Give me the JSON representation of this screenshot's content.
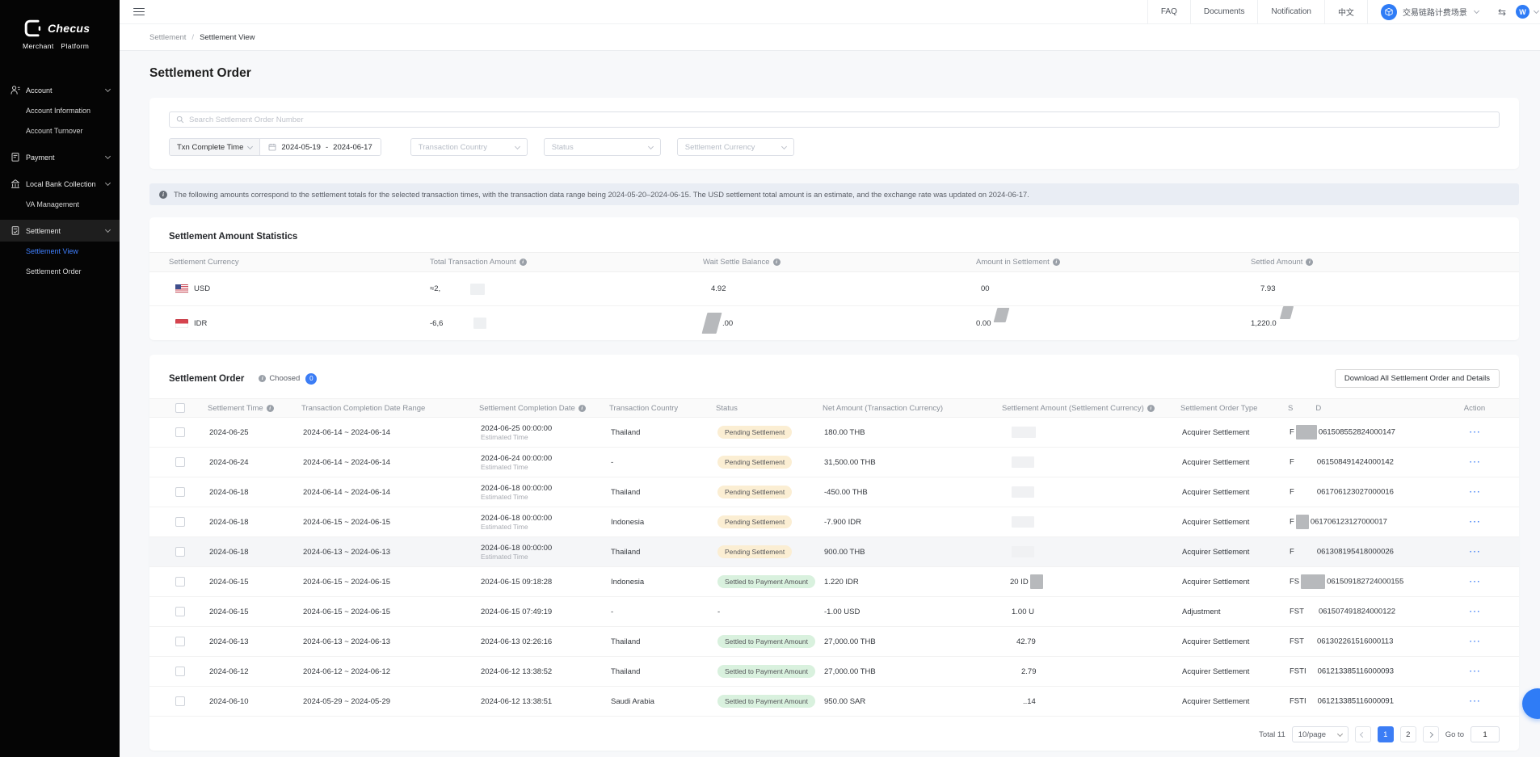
{
  "header": {
    "menu": [
      "FAQ",
      "Documents",
      "Notification",
      "中文"
    ],
    "workspace": "交易链路计费场景",
    "transfer_icon": "⇆",
    "avatar_initial": "W"
  },
  "sidebar": {
    "logo_title": "Checus",
    "logo_subtitle": "Merchant Platform",
    "groups": [
      {
        "label": "Account",
        "children": [
          "Account Information",
          "Account Turnover"
        ]
      },
      {
        "label": "Payment",
        "children": []
      },
      {
        "label": "Local Bank Collection",
        "children": [
          "VA Management"
        ]
      },
      {
        "label": "Settlement",
        "children": [
          "Settlement View",
          "Settlement Order"
        ]
      }
    ],
    "active_item": "Settlement View"
  },
  "breadcrumb": {
    "parent": "Settlement",
    "separator": "/",
    "current": "Settlement View"
  },
  "page_title": "Settlement Order",
  "filters": {
    "search_placeholder": "Search Settlement Order Number",
    "time_type": "Txn Complete Time",
    "date_start": "2024-05-19",
    "date_separator": "-",
    "date_end": "2024-06-17",
    "selects": [
      "Transaction Country",
      "Status",
      "Settlement Currency"
    ]
  },
  "banner": {
    "text": "The following amounts correspond to the settlement totals for the selected transaction times, with the transaction data range being 2024-05-20–2024-06-15. The USD settlement total amount is an estimate, and the exchange rate was updated on 2024-06-17."
  },
  "stats": {
    "title": "Settlement Amount Statistics",
    "columns": [
      {
        "label": "Settlement Currency",
        "info": false
      },
      {
        "label": "Total Transaction Amount",
        "info": true
      },
      {
        "label": "Wait Settle Balance",
        "info": true
      },
      {
        "label": "Amount in Settlement",
        "info": true
      },
      {
        "label": "Settled Amount",
        "info": true
      }
    ],
    "rows": [
      {
        "currency": "USD",
        "flag": "us",
        "cells": [
          {
            "text": "≈2,",
            "indent": 0,
            "blob": {
              "kind": "light",
              "x": 50,
              "y": 14,
              "w": 18,
              "h": 14
            }
          },
          {
            "text": "4.92",
            "indent": 10
          },
          {
            "text": "00",
            "indent": 6
          },
          {
            "text": "7.93",
            "indent": 12
          }
        ]
      },
      {
        "currency": "IDR",
        "flag": "id",
        "cells": [
          {
            "text": "-6,6",
            "indent": 0,
            "blob": {
              "kind": "light",
              "x": 54,
              "y": 14,
              "w": 16,
              "h": 14
            }
          },
          {
            "text": ".00",
            "indent": 24,
            "blob": {
              "kind": "grayskew",
              "x": 2,
              "y": 8,
              "w": 18,
              "h": 26
            }
          },
          {
            "text": "0.00",
            "indent": 0,
            "blob": {
              "kind": "grayskew",
              "x": 24,
              "y": 2,
              "w": 15,
              "h": 18
            }
          },
          {
            "text": "1,220.0",
            "indent": 0,
            "blob": {
              "kind": "grayskew",
              "x": 38,
              "y": 0,
              "w": 13,
              "h": 16
            }
          }
        ]
      }
    ]
  },
  "orders": {
    "title": "Settlement Order",
    "choosed_label": "Choosed",
    "choosed_count": "0",
    "download_label": "Download All Settlement Order and Details",
    "action_label": "···",
    "columns": [
      "Settlement Time",
      "Transaction Completion Date Range",
      "Settlement Completion Date",
      "Transaction Country",
      "Status",
      "Net Amount (Transaction Currency)",
      "Settlement Amount (Settlement Currency)",
      "Settlement Order Type",
      "Action"
    ],
    "id_col": {
      "pre": "S",
      "post": "D"
    },
    "rows": [
      {
        "settlement_time": "2024-06-25",
        "txn_range": "2024-06-14 ~ 2024-06-14",
        "completion": "2024-06-25 00:00:00",
        "completion_note": "Estimated Time",
        "country": "Thailand",
        "status": "Pending Settlement",
        "status_kind": "pending",
        "net_amount": "180.00 THB",
        "amount_fragment": "",
        "amount_indent": 8,
        "amount_blob": "light",
        "amount_blob_w": 30,
        "order_type": "Acquirer Settlement",
        "id_prefix": "F",
        "id_blob": "gray",
        "id_blob_w": 26,
        "id_suffix": "061508552824000147",
        "highlighted": false
      },
      {
        "settlement_time": "2024-06-24",
        "txn_range": "2024-06-14 ~ 2024-06-14",
        "completion": "2024-06-24 00:00:00",
        "completion_note": "Estimated Time",
        "country": "-",
        "status": "Pending Settlement",
        "status_kind": "pending",
        "net_amount": "31,500.00 THB",
        "amount_fragment": "",
        "amount_indent": 8,
        "amount_blob": "light",
        "amount_blob_w": 28,
        "order_type": "Acquirer Settlement",
        "id_prefix": "F",
        "id_blob": "gap",
        "id_blob_w": 24,
        "id_suffix": "061508491424000142",
        "highlighted": false
      },
      {
        "settlement_time": "2024-06-18",
        "txn_range": "2024-06-14 ~ 2024-06-14",
        "completion": "2024-06-18 00:00:00",
        "completion_note": "Estimated Time",
        "country": "Thailand",
        "status": "Pending Settlement",
        "status_kind": "pending",
        "net_amount": "-450.00 THB",
        "amount_fragment": "",
        "amount_indent": 8,
        "amount_blob": "light",
        "amount_blob_w": 28,
        "order_type": "Acquirer Settlement",
        "id_prefix": "F",
        "id_blob": "gap",
        "id_blob_w": 24,
        "id_suffix": "061706123027000016",
        "highlighted": false
      },
      {
        "settlement_time": "2024-06-18",
        "txn_range": "2024-06-15 ~ 2024-06-15",
        "completion": "2024-06-18 00:00:00",
        "completion_note": "Estimated Time",
        "country": "Indonesia",
        "status": "Pending Settlement",
        "status_kind": "pending",
        "net_amount": "-7.900 IDR",
        "amount_fragment": "",
        "amount_indent": 8,
        "amount_blob": "light",
        "amount_blob_w": 28,
        "order_type": "Acquirer Settlement",
        "id_prefix": "F",
        "id_blob": "gray",
        "id_blob_w": 16,
        "id_suffix": "061706123127000017",
        "highlighted": false
      },
      {
        "settlement_time": "2024-06-18",
        "txn_range": "2024-06-13 ~ 2024-06-13",
        "completion": "2024-06-18 00:00:00",
        "completion_note": "Estimated Time",
        "country": "Thailand",
        "status": "Pending Settlement",
        "status_kind": "pending",
        "net_amount": "900.00 THB",
        "amount_fragment": "",
        "amount_indent": 8,
        "amount_blob": "light",
        "amount_blob_w": 28,
        "order_type": "Acquirer Settlement",
        "id_prefix": "F",
        "id_blob": "gap",
        "id_blob_w": 24,
        "id_suffix": "061308195418000026",
        "highlighted": true
      },
      {
        "settlement_time": "2024-06-15",
        "txn_range": "2024-06-15 ~ 2024-06-15",
        "completion": "2024-06-15 09:18:28",
        "completion_note": "",
        "country": "Indonesia",
        "status": "Settled to Payment Amount",
        "status_kind": "settled",
        "net_amount": "1.220 IDR",
        "amount_fragment": "20 ID",
        "amount_indent": 8,
        "amount_blob": "gray",
        "amount_blob_w": 16,
        "order_type": "Acquirer Settlement",
        "id_prefix": "FS",
        "id_blob": "gray",
        "id_blob_w": 30,
        "id_suffix": "061509182724000155",
        "highlighted": false
      },
      {
        "settlement_time": "2024-06-15",
        "txn_range": "2024-06-15 ~ 2024-06-15",
        "completion": "2024-06-15 07:49:19",
        "completion_note": "",
        "country": "-",
        "status": "-",
        "status_kind": "none",
        "net_amount": "-1.00 USD",
        "amount_fragment": "1.00 U",
        "amount_indent": 10,
        "amount_blob": "none",
        "amount_blob_w": 0,
        "order_type": "Adjustment",
        "id_prefix": "FST",
        "id_blob": "gap",
        "id_blob_w": 14,
        "id_suffix": "061507491824000122",
        "highlighted": false
      },
      {
        "settlement_time": "2024-06-13",
        "txn_range": "2024-06-13 ~ 2024-06-13",
        "completion": "2024-06-13 02:26:16",
        "completion_note": "",
        "country": "Thailand",
        "status": "Settled to Payment Amount",
        "status_kind": "settled",
        "net_amount": "27,000.00 THB",
        "amount_fragment": "42.79",
        "amount_indent": 16,
        "amount_blob": "none",
        "amount_blob_w": 0,
        "order_type": "Acquirer Settlement",
        "id_prefix": "FST",
        "id_blob": "gap",
        "id_blob_w": 12,
        "id_suffix": "061302261516000113",
        "highlighted": false
      },
      {
        "settlement_time": "2024-06-12",
        "txn_range": "2024-06-12 ~ 2024-06-12",
        "completion": "2024-06-12 13:38:52",
        "completion_note": "",
        "country": "Thailand",
        "status": "Settled to Payment Amount",
        "status_kind": "settled",
        "net_amount": "27,000.00 THB",
        "amount_fragment": "2.79",
        "amount_indent": 22,
        "amount_blob": "none",
        "amount_blob_w": 0,
        "order_type": "Acquirer Settlement",
        "id_prefix": "FSTI",
        "id_blob": "gap",
        "id_blob_w": 10,
        "id_suffix": "061213385116000093",
        "highlighted": false
      },
      {
        "settlement_time": "2024-06-10",
        "txn_range": "2024-05-29 ~ 2024-05-29",
        "completion": "2024-06-12 13:38:51",
        "completion_note": "",
        "country": "Saudi Arabia",
        "status": "Settled to Payment Amount",
        "status_kind": "settled",
        "net_amount": "950.00 SAR",
        "amount_fragment": "..14",
        "amount_indent": 24,
        "amount_blob": "none",
        "amount_blob_w": 0,
        "order_type": "Acquirer Settlement",
        "id_prefix": "FSTI",
        "id_blob": "gap",
        "id_blob_w": 10,
        "id_suffix": "061213385116000091",
        "highlighted": false
      }
    ],
    "pagination": {
      "total": "Total 11",
      "per_page": "10/page",
      "pages": [
        "1",
        "2"
      ],
      "active_page": "1",
      "goto_label": "Go to",
      "goto_value": "1"
    }
  }
}
